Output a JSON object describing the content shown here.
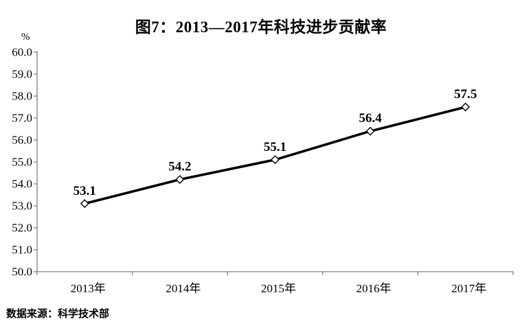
{
  "title": {
    "text": "图7：2013—2017年科技进步贡献率"
  },
  "source_note": {
    "text": "数据来源：科学技术部"
  },
  "chart_data": {
    "type": "line",
    "title": "图7：2013—2017年科技进步贡献率",
    "unit_label": "%",
    "categories": [
      "2013年",
      "2014年",
      "2015年",
      "2016年",
      "2017年"
    ],
    "series": [
      {
        "name": "科技进步贡献率",
        "values": [
          53.1,
          54.2,
          55.1,
          56.4,
          57.5
        ]
      }
    ],
    "data_labels": [
      "53.1",
      "54.2",
      "55.1",
      "56.4",
      "57.5"
    ],
    "ylim": [
      50.0,
      60.0
    ],
    "ytick_step": 1.0,
    "ytick_labels": [
      "50.0",
      "51.0",
      "52.0",
      "53.0",
      "54.0",
      "55.0",
      "56.0",
      "57.0",
      "58.0",
      "59.0",
      "60.0"
    ],
    "grid": false,
    "legend": false,
    "styles": {
      "line_color": "#000000",
      "marker": "open-diamond",
      "marker_fill": "#ffffff",
      "axis_color": "#808080",
      "text_color": "#000000"
    },
    "source": "数据来源：科学技术部"
  }
}
